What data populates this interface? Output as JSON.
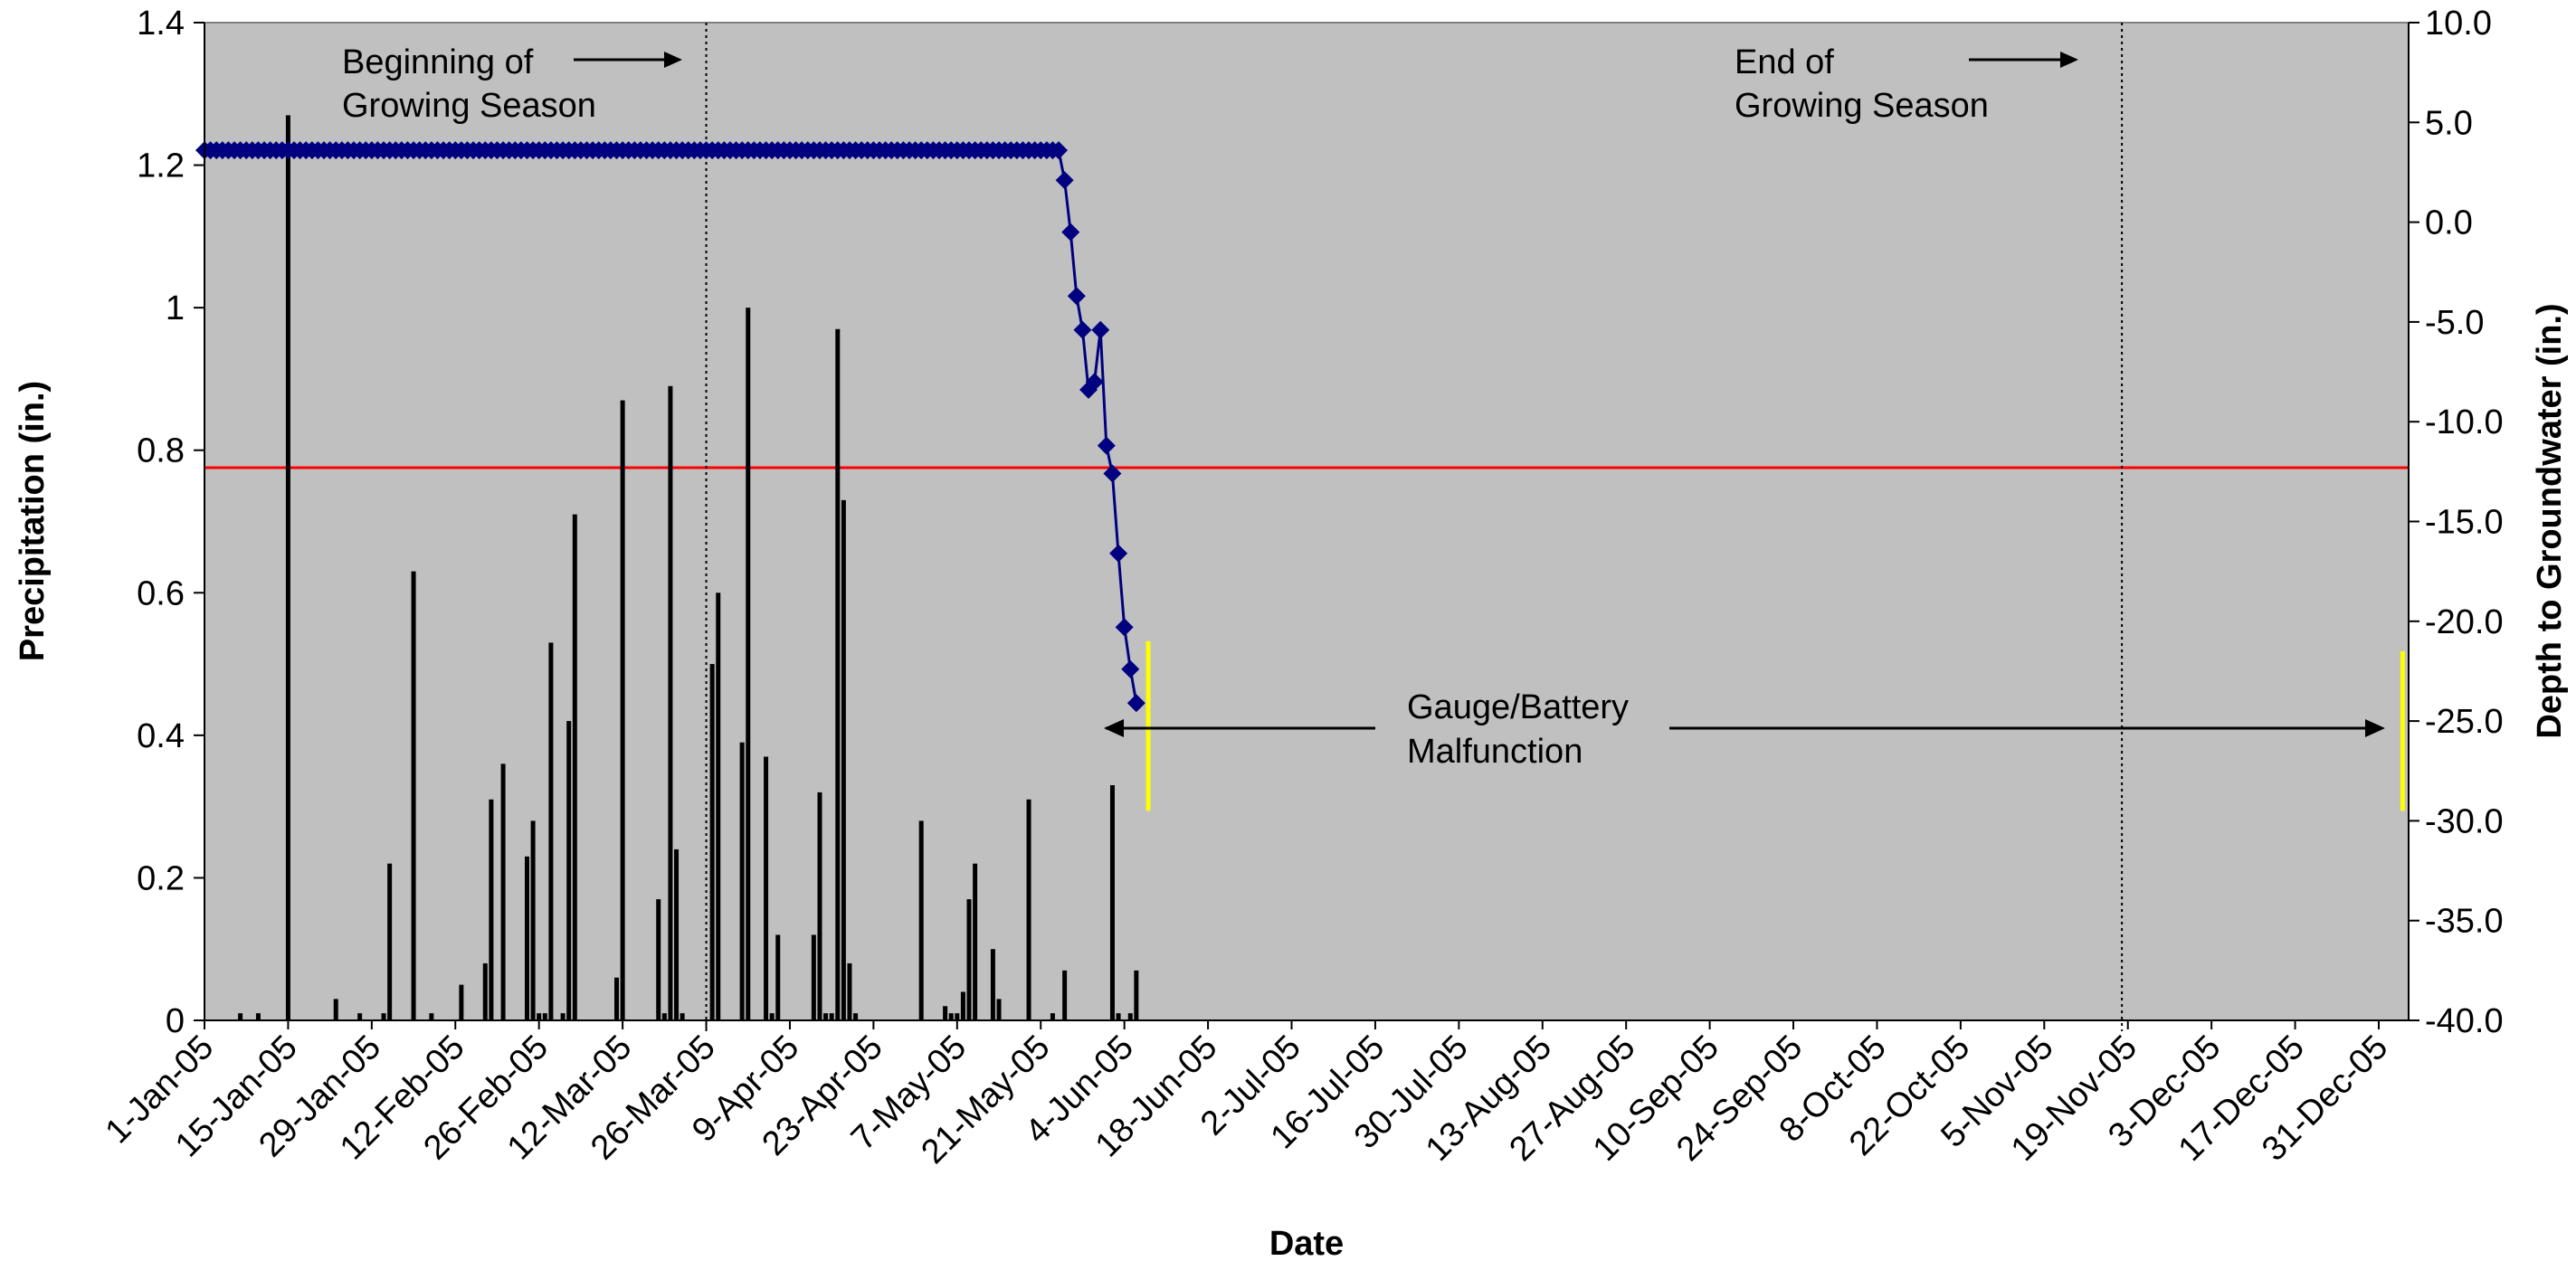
{
  "chart_data": {
    "type": "bar+line",
    "title": "",
    "xlabel": "Date",
    "ylabel_left": "Precipitation (in.)",
    "ylabel_right": "Depth to Groundwater (in.)",
    "x_range": [
      "2005-01-01",
      "2006-01-05"
    ],
    "ylim_left": [
      0,
      1.4
    ],
    "ylim_right": [
      -40,
      10
    ],
    "left_ticks": [
      "0",
      "0.2",
      "0.4",
      "0.6",
      "0.8",
      "1",
      "1.2",
      "1.4"
    ],
    "right_ticks": [
      "-40.0",
      "-35.0",
      "-30.0",
      "-25.0",
      "-20.0",
      "-15.0",
      "-10.0",
      "-5.0",
      "0.0",
      "5.0",
      "10.0"
    ],
    "x_tick_labels": [
      "1-Jan-05",
      "15-Jan-05",
      "29-Jan-05",
      "12-Feb-05",
      "26-Feb-05",
      "12-Mar-05",
      "26-Mar-05",
      "9-Apr-05",
      "23-Apr-05",
      "7-May-05",
      "21-May-05",
      "4-Jun-05",
      "18-Jun-05",
      "2-Jul-05",
      "16-Jul-05",
      "30-Jul-05",
      "13-Aug-05",
      "27-Aug-05",
      "10-Sep-05",
      "24-Sep-05",
      "8-Oct-05",
      "22-Oct-05",
      "5-Nov-05",
      "19-Nov-05",
      "3-Dec-05",
      "17-Dec-05",
      "31-Dec-05"
    ],
    "x_tick_dates": [
      "2005-01-01",
      "2005-01-15",
      "2005-01-29",
      "2005-02-12",
      "2005-02-26",
      "2005-03-12",
      "2005-03-26",
      "2005-04-09",
      "2005-04-23",
      "2005-05-07",
      "2005-05-21",
      "2005-06-04",
      "2005-06-18",
      "2005-07-02",
      "2005-07-16",
      "2005-07-30",
      "2005-08-13",
      "2005-08-27",
      "2005-09-10",
      "2005-09-24",
      "2005-10-08",
      "2005-10-22",
      "2005-11-05",
      "2005-11-19",
      "2005-12-03",
      "2005-12-17",
      "2005-12-31"
    ],
    "grid": false,
    "legend": "none",
    "plot_background": "#c0c0c0",
    "precipitation": {
      "axis": "left",
      "color": "#000000",
      "points": [
        {
          "date": "2005-01-07",
          "value": 0.01
        },
        {
          "date": "2005-01-10",
          "value": 0.01
        },
        {
          "date": "2005-01-15",
          "value": 1.27
        },
        {
          "date": "2005-01-23",
          "value": 0.03
        },
        {
          "date": "2005-01-27",
          "value": 0.01
        },
        {
          "date": "2005-01-31",
          "value": 0.01
        },
        {
          "date": "2005-02-01",
          "value": 0.22
        },
        {
          "date": "2005-02-05",
          "value": 0.63
        },
        {
          "date": "2005-02-08",
          "value": 0.01
        },
        {
          "date": "2005-02-13",
          "value": 0.05
        },
        {
          "date": "2005-02-17",
          "value": 0.08
        },
        {
          "date": "2005-02-18",
          "value": 0.31
        },
        {
          "date": "2005-02-20",
          "value": 0.36
        },
        {
          "date": "2005-02-24",
          "value": 0.23
        },
        {
          "date": "2005-02-25",
          "value": 0.28
        },
        {
          "date": "2005-02-26",
          "value": 0.01
        },
        {
          "date": "2005-02-27",
          "value": 0.01
        },
        {
          "date": "2005-02-28",
          "value": 0.53
        },
        {
          "date": "2005-03-02",
          "value": 0.01
        },
        {
          "date": "2005-03-03",
          "value": 0.42
        },
        {
          "date": "2005-03-04",
          "value": 0.71
        },
        {
          "date": "2005-03-11",
          "value": 0.06
        },
        {
          "date": "2005-03-12",
          "value": 0.87
        },
        {
          "date": "2005-03-18",
          "value": 0.17
        },
        {
          "date": "2005-03-19",
          "value": 0.01
        },
        {
          "date": "2005-03-20",
          "value": 0.89
        },
        {
          "date": "2005-03-21",
          "value": 0.24
        },
        {
          "date": "2005-03-22",
          "value": 0.01
        },
        {
          "date": "2005-03-27",
          "value": 0.5
        },
        {
          "date": "2005-03-28",
          "value": 0.6
        },
        {
          "date": "2005-04-01",
          "value": 0.39
        },
        {
          "date": "2005-04-02",
          "value": 1.0
        },
        {
          "date": "2005-04-05",
          "value": 0.37
        },
        {
          "date": "2005-04-06",
          "value": 0.01
        },
        {
          "date": "2005-04-07",
          "value": 0.12
        },
        {
          "date": "2005-04-13",
          "value": 0.12
        },
        {
          "date": "2005-04-14",
          "value": 0.32
        },
        {
          "date": "2005-04-15",
          "value": 0.01
        },
        {
          "date": "2005-04-16",
          "value": 0.01
        },
        {
          "date": "2005-04-17",
          "value": 0.97
        },
        {
          "date": "2005-04-18",
          "value": 0.73
        },
        {
          "date": "2005-04-19",
          "value": 0.08
        },
        {
          "date": "2005-04-20",
          "value": 0.01
        },
        {
          "date": "2005-05-01",
          "value": 0.28
        },
        {
          "date": "2005-05-05",
          "value": 0.02
        },
        {
          "date": "2005-05-06",
          "value": 0.01
        },
        {
          "date": "2005-05-07",
          "value": 0.01
        },
        {
          "date": "2005-05-08",
          "value": 0.04
        },
        {
          "date": "2005-05-09",
          "value": 0.17
        },
        {
          "date": "2005-05-10",
          "value": 0.22
        },
        {
          "date": "2005-05-13",
          "value": 0.1
        },
        {
          "date": "2005-05-14",
          "value": 0.03
        },
        {
          "date": "2005-05-19",
          "value": 0.31
        },
        {
          "date": "2005-05-23",
          "value": 0.01
        },
        {
          "date": "2005-05-25",
          "value": 0.07
        },
        {
          "date": "2005-06-02",
          "value": 0.33
        },
        {
          "date": "2005-06-03",
          "value": 0.01
        },
        {
          "date": "2005-06-05",
          "value": 0.01
        },
        {
          "date": "2005-06-06",
          "value": 0.07
        }
      ]
    },
    "groundwater": {
      "axis": "right",
      "color": "#000080",
      "flat_value": 3.6,
      "flat_start": "2005-01-01",
      "flat_end": "2005-05-24",
      "points": [
        {
          "date": "2005-05-25",
          "value": 2.1
        },
        {
          "date": "2005-05-26",
          "value": -0.5
        },
        {
          "date": "2005-05-27",
          "value": -3.7
        },
        {
          "date": "2005-05-28",
          "value": -5.4
        },
        {
          "date": "2005-05-29",
          "value": -8.4
        },
        {
          "date": "2005-05-30",
          "value": -8.0
        },
        {
          "date": "2005-05-31",
          "value": -5.4
        },
        {
          "date": "2005-06-01",
          "value": -11.2
        },
        {
          "date": "2005-06-02",
          "value": -12.6
        },
        {
          "date": "2005-06-03",
          "value": -16.6
        },
        {
          "date": "2005-06-04",
          "value": -20.3
        },
        {
          "date": "2005-06-05",
          "value": -22.4
        },
        {
          "date": "2005-06-06",
          "value": -24.1
        }
      ]
    },
    "reference_line": {
      "axis": "right",
      "value": -12.3,
      "color": "#ff0000"
    },
    "season_lines": [
      {
        "date": "2005-03-26",
        "style": "dotted"
      },
      {
        "date": "2005-11-18",
        "style": "dotted"
      }
    ],
    "malfunction_markers": [
      {
        "date": "2005-06-08",
        "top": -21.0,
        "bottom": -29.5,
        "color": "#ffff00"
      },
      {
        "date": "2006-01-04",
        "top": -21.5,
        "bottom": -29.5,
        "color": "#ffff00"
      }
    ],
    "annotations": {
      "beginning_line1": "Beginning of",
      "beginning_line2": "Growing Season",
      "end_line1": "End of",
      "end_line2": "Growing Season",
      "gauge_line1": "Gauge/Battery",
      "gauge_line2": "Malfunction"
    }
  }
}
